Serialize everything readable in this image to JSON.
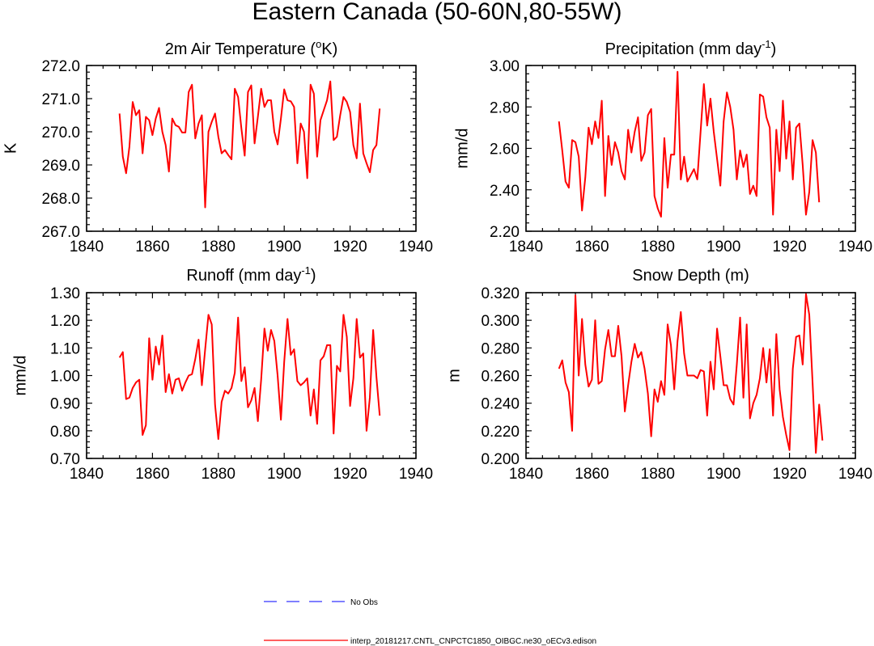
{
  "figure": {
    "title": "Eastern Canada (50-60N,80-55W)"
  },
  "chart_data": [
    {
      "type": "line",
      "title": "2m Air Temperature (°K)",
      "title_parts": [
        "2m Air Temperature (",
        "o",
        "K)"
      ],
      "xlabel": "",
      "ylabel": "K",
      "xlim": [
        1840,
        1940
      ],
      "ylim": [
        267.0,
        272.0
      ],
      "xticks": [
        1840,
        1860,
        1880,
        1900,
        1920,
        1940
      ],
      "yticks": [
        267.0,
        268.0,
        269.0,
        270.0,
        271.0,
        272.0
      ],
      "ytick_labels": [
        "267.0",
        "268.0",
        "269.0",
        "270.0",
        "271.0",
        "272.0"
      ],
      "x_start": 1850,
      "series": [
        {
          "name": "interp_20181217.CNTL_CNPCTC1850_OIBGC.ne30_oECv3.edison",
          "color": "#ff0000",
          "values": [
            270.55,
            269.25,
            268.75,
            269.55,
            270.9,
            270.5,
            270.65,
            269.35,
            270.45,
            270.35,
            269.9,
            270.4,
            270.72,
            270.0,
            269.6,
            268.8,
            270.4,
            270.2,
            270.15,
            269.98,
            269.98,
            271.2,
            271.42,
            269.8,
            270.25,
            270.5,
            267.72,
            270.0,
            270.3,
            270.55,
            269.85,
            269.35,
            269.45,
            269.3,
            269.17,
            271.3,
            271.05,
            270.1,
            269.28,
            271.2,
            271.4,
            269.65,
            270.45,
            271.3,
            270.75,
            270.95,
            270.95,
            270.0,
            269.62,
            270.4,
            271.28,
            270.95,
            270.92,
            270.75,
            269.05,
            270.25,
            270.0,
            268.6,
            271.42,
            271.15,
            269.25,
            270.35,
            270.65,
            270.95,
            271.52,
            269.75,
            269.85,
            270.5,
            271.05,
            270.9,
            270.6,
            269.6,
            269.2,
            270.85,
            269.35,
            269.05,
            268.78,
            269.45,
            269.6,
            270.7
          ]
        }
      ]
    },
    {
      "type": "line",
      "title": "Precipitation (mm day⁻¹)",
      "title_parts": [
        "Precipitation (mm day",
        "-1",
        ")"
      ],
      "xlabel": "",
      "ylabel": "mm/d",
      "xlim": [
        1840,
        1940
      ],
      "ylim": [
        2.2,
        3.0
      ],
      "xticks": [
        1840,
        1860,
        1880,
        1900,
        1920,
        1940
      ],
      "yticks": [
        2.2,
        2.4,
        2.6,
        2.8,
        3.0
      ],
      "ytick_labels": [
        "2.20",
        "2.40",
        "2.60",
        "2.80",
        "3.00"
      ],
      "x_start": 1850,
      "series": [
        {
          "name": "interp_20181217.CNTL_CNPCTC1850_OIBGC.ne30_oECv3.edison",
          "color": "#ff0000",
          "values": [
            2.73,
            2.59,
            2.44,
            2.41,
            2.64,
            2.63,
            2.56,
            2.3,
            2.46,
            2.7,
            2.62,
            2.73,
            2.65,
            2.83,
            2.37,
            2.66,
            2.52,
            2.63,
            2.58,
            2.49,
            2.45,
            2.69,
            2.58,
            2.68,
            2.75,
            2.54,
            2.58,
            2.76,
            2.79,
            2.37,
            2.31,
            2.27,
            2.65,
            2.41,
            2.57,
            2.57,
            2.97,
            2.45,
            2.56,
            2.44,
            2.47,
            2.5,
            2.45,
            2.68,
            2.91,
            2.71,
            2.84,
            2.68,
            2.55,
            2.42,
            2.73,
            2.87,
            2.8,
            2.69,
            2.45,
            2.59,
            2.51,
            2.57,
            2.38,
            2.42,
            2.37,
            2.86,
            2.85,
            2.75,
            2.7,
            2.28,
            2.69,
            2.49,
            2.83,
            2.55,
            2.73,
            2.45,
            2.7,
            2.72,
            2.52,
            2.28,
            2.39,
            2.64,
            2.58,
            2.34
          ]
        }
      ]
    },
    {
      "type": "line",
      "title": "Runoff (mm day⁻¹)",
      "title_parts": [
        "Runoff (mm day",
        "-1",
        ")"
      ],
      "xlabel": "",
      "ylabel": "mm/d",
      "xlim": [
        1840,
        1940
      ],
      "ylim": [
        0.7,
        1.3
      ],
      "xticks": [
        1840,
        1860,
        1880,
        1900,
        1920,
        1940
      ],
      "yticks": [
        0.7,
        0.8,
        0.9,
        1.0,
        1.1,
        1.2,
        1.3
      ],
      "ytick_labels": [
        "0.70",
        "0.80",
        "0.90",
        "1.00",
        "1.10",
        "1.20",
        "1.30"
      ],
      "x_start": 1850,
      "series": [
        {
          "name": "interp_20181217.CNTL_CNPCTC1850_OIBGC.ne30_oECv3.edison",
          "color": "#ff0000",
          "values": [
            1.065,
            1.085,
            0.915,
            0.92,
            0.955,
            0.975,
            0.985,
            0.785,
            0.82,
            1.135,
            0.985,
            1.105,
            1.04,
            1.145,
            0.94,
            1.005,
            0.935,
            0.985,
            0.99,
            0.945,
            0.975,
            1.0,
            1.005,
            1.06,
            1.13,
            0.965,
            1.095,
            1.22,
            1.185,
            0.895,
            0.77,
            0.905,
            0.945,
            0.935,
            0.955,
            1.01,
            1.21,
            0.98,
            1.03,
            0.885,
            0.91,
            0.955,
            0.835,
            0.985,
            1.17,
            1.09,
            1.165,
            1.125,
            1.0,
            0.84,
            1.05,
            1.205,
            1.075,
            1.095,
            0.98,
            0.965,
            0.975,
            0.99,
            0.855,
            0.95,
            0.825,
            1.055,
            1.07,
            1.11,
            1.11,
            0.79,
            1.035,
            1.015,
            1.22,
            1.14,
            0.89,
            0.99,
            1.205,
            1.065,
            1.08,
            0.8,
            0.92,
            1.165,
            0.995,
            0.855
          ]
        }
      ]
    },
    {
      "type": "line",
      "title": "Snow Depth (m)",
      "title_parts": [
        "Snow Depth (m)"
      ],
      "xlabel": "",
      "ylabel": "m",
      "xlim": [
        1840,
        1940
      ],
      "ylim": [
        0.2,
        0.32
      ],
      "xticks": [
        1840,
        1860,
        1880,
        1900,
        1920,
        1940
      ],
      "yticks": [
        0.2,
        0.22,
        0.24,
        0.26,
        0.28,
        0.3,
        0.32
      ],
      "ytick_labels": [
        "0.200",
        "0.220",
        "0.240",
        "0.260",
        "0.280",
        "0.300",
        "0.320"
      ],
      "x_start": 1850,
      "series": [
        {
          "name": "interp_20181217.CNTL_CNPCTC1850_OIBGC.ne30_oECv3.edison",
          "color": "#ff0000",
          "values": [
            0.265,
            0.271,
            0.255,
            0.248,
            0.22,
            0.318,
            0.26,
            0.301,
            0.268,
            0.252,
            0.257,
            0.3,
            0.254,
            0.256,
            0.279,
            0.293,
            0.274,
            0.274,
            0.296,
            0.274,
            0.234,
            0.253,
            0.27,
            0.283,
            0.273,
            0.277,
            0.265,
            0.247,
            0.216,
            0.25,
            0.241,
            0.256,
            0.246,
            0.297,
            0.282,
            0.25,
            0.285,
            0.306,
            0.276,
            0.26,
            0.26,
            0.26,
            0.258,
            0.264,
            0.263,
            0.231,
            0.27,
            0.25,
            0.294,
            0.274,
            0.253,
            0.253,
            0.243,
            0.239,
            0.268,
            0.302,
            0.244,
            0.297,
            0.229,
            0.24,
            0.246,
            0.258,
            0.28,
            0.255,
            0.279,
            0.231,
            0.29,
            0.25,
            0.23,
            0.217,
            0.206,
            0.265,
            0.288,
            0.289,
            0.268,
            0.319,
            0.304,
            0.255,
            0.204,
            0.239,
            0.213
          ]
        }
      ]
    }
  ],
  "legend": {
    "items": [
      {
        "label": "No Obs",
        "color": "#3333ff",
        "style": "dashed"
      },
      {
        "label": "interp_20181217.CNTL_CNPCTC1850_OIBGC.ne30_oECv3.edison",
        "color": "#ff0000",
        "style": "solid"
      }
    ]
  }
}
